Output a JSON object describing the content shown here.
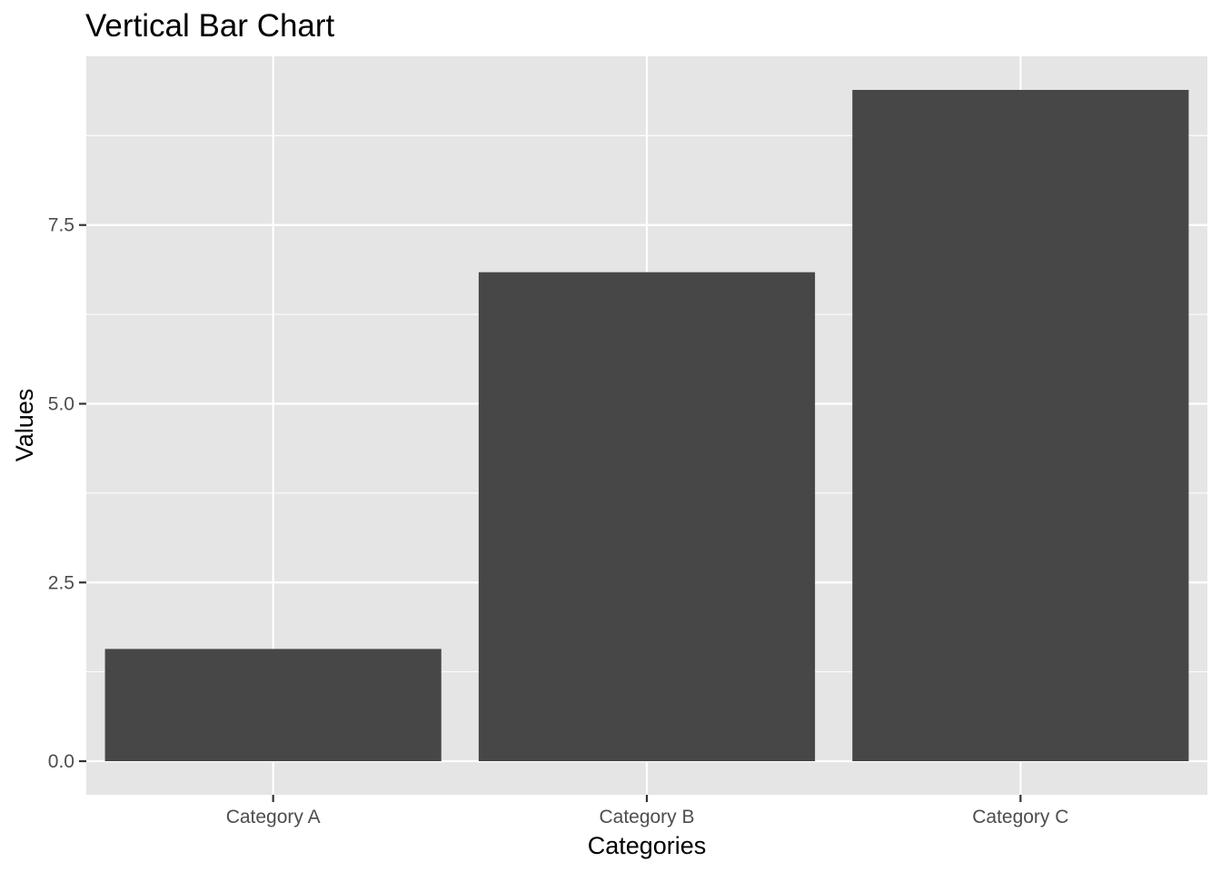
{
  "chart_data": {
    "type": "bar",
    "title": "Vertical Bar Chart",
    "xlabel": "Categories",
    "ylabel": "Values",
    "categories": [
      "Category A",
      "Category B",
      "Category C"
    ],
    "values": [
      1.57,
      6.84,
      9.39
    ],
    "ylim": [
      -0.47,
      9.86
    ],
    "y_ticks": [
      0.0,
      2.5,
      5.0,
      7.5
    ],
    "y_tick_labels": [
      "0.0",
      "2.5",
      "5.0",
      "7.5"
    ],
    "y_minor_ticks": [
      1.25,
      3.75,
      6.25,
      8.75
    ],
    "grid": true,
    "legend": "none",
    "colors": {
      "panel_background": "#e5e5e5",
      "grid_line": "#ffffff",
      "bar_fill": "#474747",
      "tick_mark": "#333333",
      "tick_label": "#4d4d4d",
      "text": "#000000"
    }
  }
}
